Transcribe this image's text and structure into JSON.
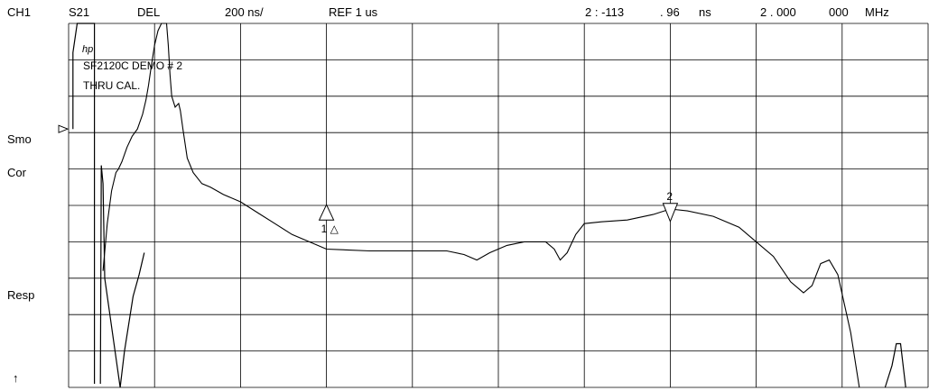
{
  "header": {
    "channel": "CH1",
    "param": "S21",
    "format": "DEL",
    "scale": "200 ns/",
    "reference": "REF 1 us",
    "marker_prefix": "2 : -113",
    "marker_frac": ". 96",
    "marker_unit": "ns",
    "freq_int": "2 . 000",
    "freq_frac": "000",
    "freq_unit": "MHz"
  },
  "side_labels": {
    "smo": "Smo",
    "cor": "Cor",
    "resp": "Resp",
    "arrow": "↑"
  },
  "annotations": {
    "logo": "hp",
    "line1": "SF2120C DEMO # 2",
    "line2": "THRU CAL.",
    "marker1": "1 △",
    "marker2": "2"
  },
  "chart_data": {
    "type": "line",
    "title": "",
    "xlabel": "",
    "ylabel": "",
    "grid": true,
    "grid_divisions": {
      "x": 10,
      "y": 10
    },
    "series": [
      {
        "values_note_units": "graticule divisions (x: 0-10 left to right, y: 0-10 bottom to top)",
        "points": [
          [
            0.4,
            3.2
          ],
          [
            0.45,
            4.5
          ],
          [
            0.5,
            5.4
          ],
          [
            0.55,
            5.9
          ],
          [
            0.58,
            6.0
          ],
          [
            0.62,
            6.2
          ],
          [
            0.68,
            6.6
          ],
          [
            0.74,
            6.9
          ],
          [
            0.8,
            7.1
          ],
          [
            0.86,
            7.5
          ],
          [
            0.9,
            7.9
          ],
          [
            0.93,
            8.3
          ],
          [
            0.96,
            8.8
          ],
          [
            1.0,
            9.4
          ],
          [
            1.04,
            9.8
          ],
          [
            1.08,
            10.0
          ],
          [
            1.14,
            10.0
          ],
          [
            1.16,
            9.4
          ],
          [
            1.18,
            8.6
          ],
          [
            1.2,
            8.0
          ],
          [
            1.24,
            7.7
          ],
          [
            1.28,
            7.8
          ],
          [
            1.3,
            7.6
          ],
          [
            1.33,
            7.1
          ],
          [
            1.38,
            6.3
          ],
          [
            1.45,
            5.9
          ],
          [
            1.55,
            5.6
          ],
          [
            1.65,
            5.5
          ],
          [
            1.8,
            5.3
          ],
          [
            2.0,
            5.1
          ],
          [
            2.2,
            4.8
          ],
          [
            2.4,
            4.5
          ],
          [
            2.6,
            4.2
          ],
          [
            2.8,
            4.0
          ],
          [
            3.0,
            3.8
          ],
          [
            3.5,
            3.75
          ],
          [
            4.0,
            3.75
          ],
          [
            4.4,
            3.75
          ],
          [
            4.6,
            3.65
          ],
          [
            4.75,
            3.5
          ],
          [
            4.9,
            3.7
          ],
          [
            5.1,
            3.9
          ],
          [
            5.3,
            4.0
          ],
          [
            5.55,
            4.0
          ],
          [
            5.65,
            3.8
          ],
          [
            5.72,
            3.5
          ],
          [
            5.8,
            3.7
          ],
          [
            5.9,
            4.2
          ],
          [
            6.0,
            4.5
          ],
          [
            6.2,
            4.55
          ],
          [
            6.5,
            4.6
          ],
          [
            6.8,
            4.75
          ],
          [
            7.0,
            4.9
          ],
          [
            7.2,
            4.85
          ],
          [
            7.5,
            4.7
          ],
          [
            7.8,
            4.4
          ],
          [
            8.0,
            4.0
          ],
          [
            8.2,
            3.6
          ],
          [
            8.4,
            2.9
          ],
          [
            8.55,
            2.6
          ],
          [
            8.65,
            2.8
          ],
          [
            8.75,
            3.4
          ],
          [
            8.85,
            3.5
          ],
          [
            8.95,
            3.1
          ],
          [
            9.1,
            1.5
          ],
          [
            9.2,
            0.0
          ]
        ]
      }
    ],
    "markers": [
      {
        "label": "1 △",
        "x": 3.0,
        "y": 5.02
      },
      {
        "label": "2",
        "x": 7.0,
        "y": 4.56
      }
    ],
    "reference_level": 7.1
  }
}
